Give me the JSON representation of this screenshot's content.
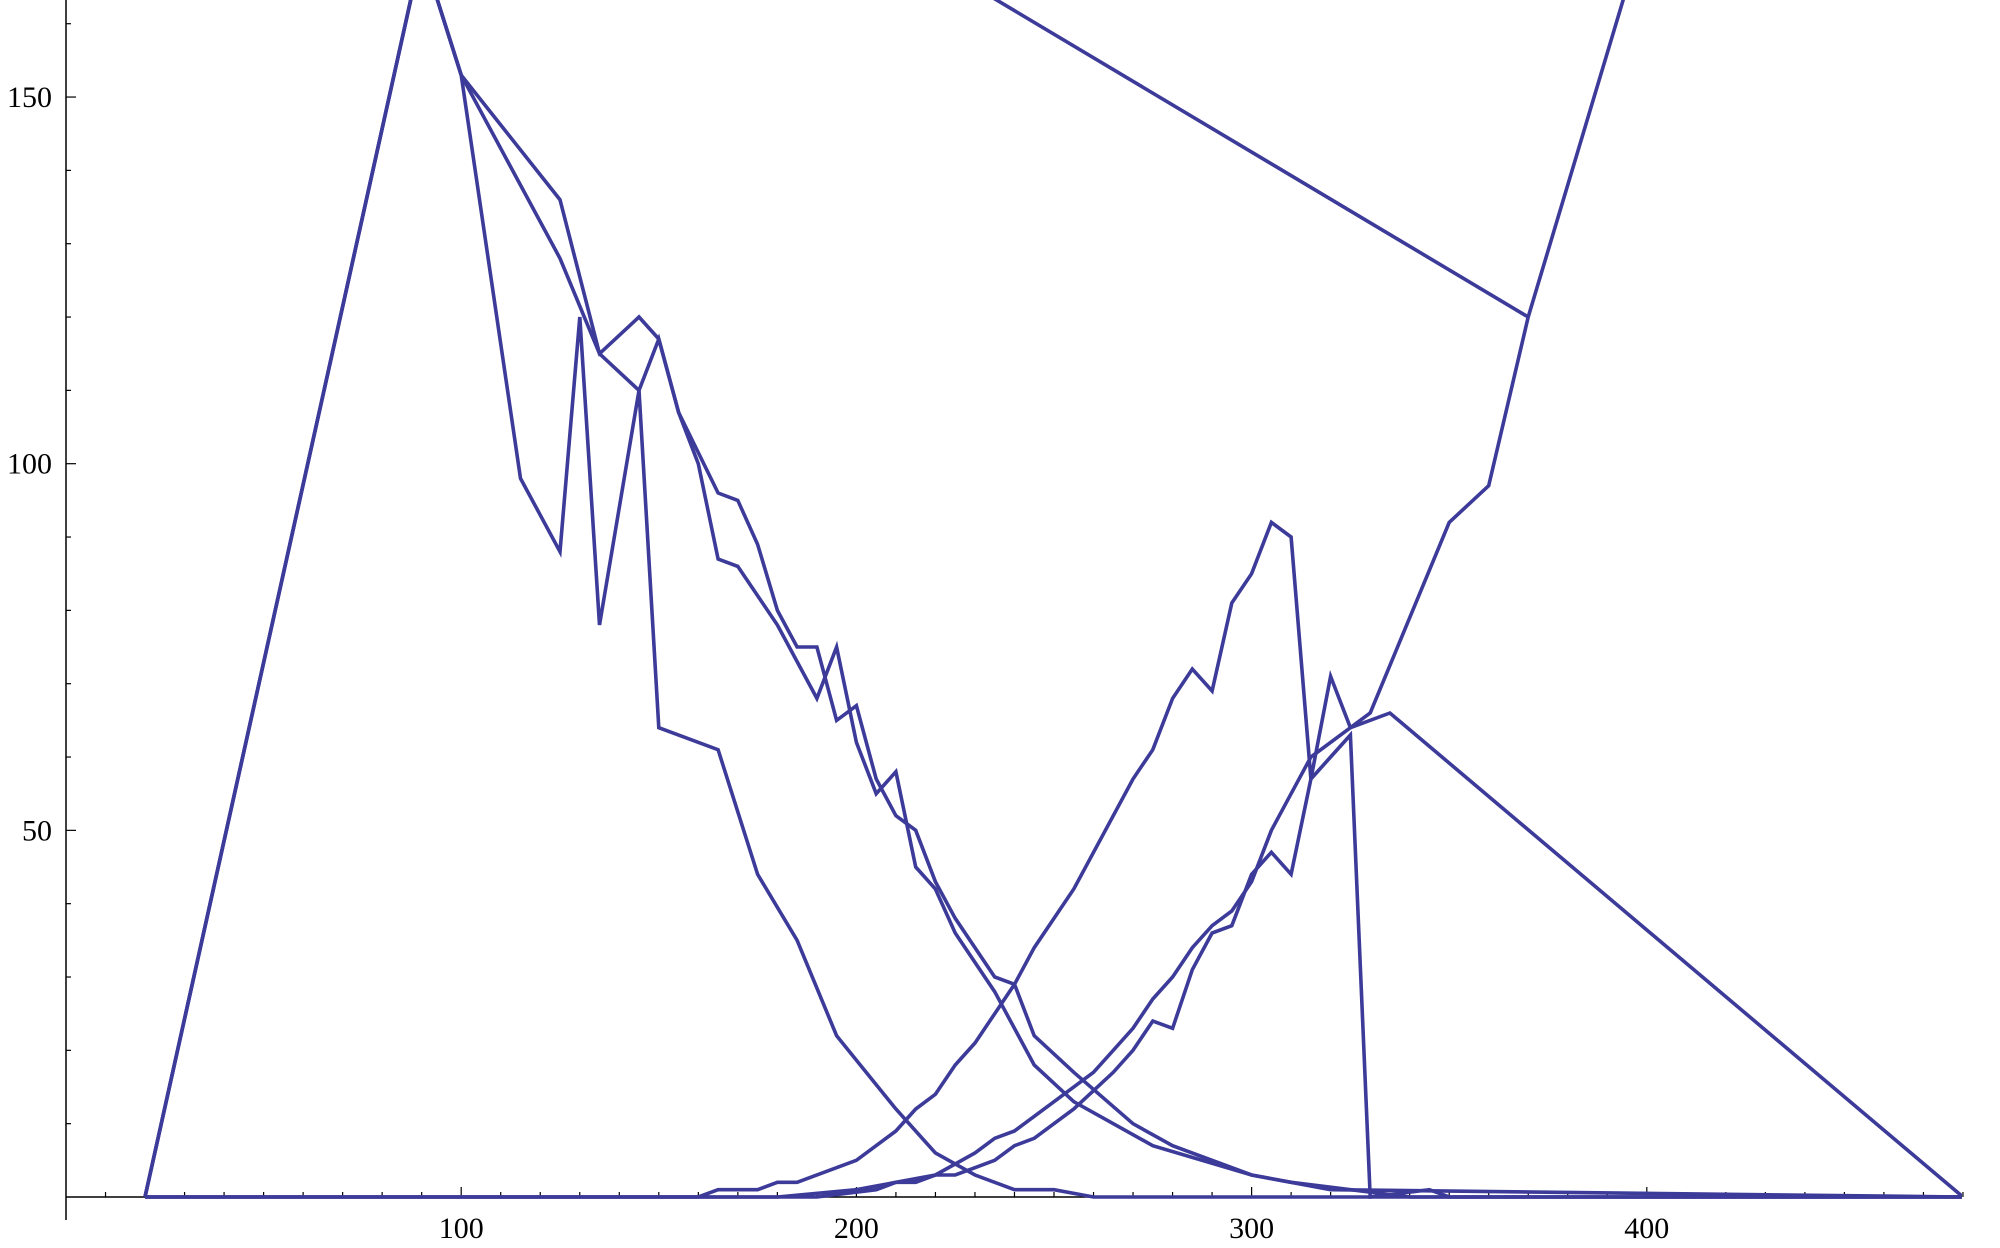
{
  "chart_data": {
    "type": "line",
    "title": "",
    "xlabel": "",
    "ylabel": "",
    "xlim": [
      0,
      480
    ],
    "ylim": [
      0,
      163
    ],
    "x_major_ticks": [
      100,
      200,
      300,
      400
    ],
    "y_major_ticks": [
      50,
      100,
      150
    ],
    "x_minor_step": 10,
    "y_minor_step": 10,
    "grid": false,
    "legend": "none",
    "line_color": "#3d3b99",
    "series": [
      {
        "x": [
          20,
          90,
          100,
          115,
          125,
          130,
          135,
          145,
          150,
          165,
          175,
          185,
          195,
          210,
          220,
          230,
          240,
          250,
          260,
          280,
          300,
          310,
          350,
          480
        ],
        "y": [
          0,
          170,
          153,
          98,
          88,
          120,
          78,
          110,
          64,
          61,
          44,
          35,
          22,
          12,
          6,
          3,
          1,
          1,
          0,
          0,
          0,
          0,
          0,
          0
        ]
      },
      {
        "x": [
          20,
          90,
          100,
          125,
          135,
          145,
          150,
          155,
          165,
          170,
          175,
          180,
          185,
          190,
          195,
          200,
          205,
          210,
          215,
          220,
          225,
          235,
          240,
          245,
          255,
          270,
          280,
          300,
          310,
          340,
          480
        ],
        "y": [
          0,
          170,
          153,
          128,
          115,
          120,
          117,
          107,
          96,
          95,
          89,
          80,
          75,
          75,
          65,
          67,
          57,
          52,
          50,
          43,
          38,
          30,
          29,
          22,
          17,
          10,
          7,
          3,
          2,
          0,
          0
        ]
      },
      {
        "x": [
          20,
          90,
          100,
          125,
          135,
          145,
          150,
          155,
          160,
          165,
          170,
          180,
          190,
          195,
          200,
          205,
          210,
          215,
          220,
          225,
          235,
          245,
          255,
          265,
          275,
          300,
          320,
          480
        ],
        "y": [
          0,
          170,
          153,
          136,
          115,
          110,
          117,
          107,
          100,
          87,
          86,
          78,
          68,
          75,
          62,
          55,
          58,
          45,
          42,
          36,
          28,
          18,
          13,
          10,
          7,
          3,
          1,
          0
        ]
      },
      {
        "x": [
          20,
          160,
          165,
          175,
          180,
          185,
          200,
          210,
          215,
          220,
          225,
          230,
          235,
          240,
          245,
          255,
          270,
          275,
          280,
          285,
          290,
          295,
          300,
          305,
          310,
          315,
          320,
          325,
          330,
          340,
          350,
          360,
          370,
          395,
          480
        ],
        "y": [
          0,
          0,
          1,
          1,
          2,
          2,
          5,
          9,
          12,
          14,
          18,
          21,
          25,
          29,
          34,
          42,
          57,
          61,
          68,
          72,
          69,
          81,
          85,
          92,
          90,
          57,
          71,
          64,
          66,
          79,
          92,
          97,
          120,
          165,
          165
        ]
      },
      {
        "x": [
          20,
          180,
          200,
          210,
          220,
          230,
          235,
          240,
          250,
          260,
          265,
          270,
          275,
          280,
          285,
          290,
          295,
          300,
          305,
          310,
          315,
          325,
          335,
          480
        ],
        "y": [
          0,
          0,
          1,
          2,
          3,
          6,
          8,
          9,
          13,
          17,
          20,
          23,
          27,
          30,
          34,
          37,
          39,
          43,
          50,
          55,
          60,
          64,
          66,
          0
        ]
      },
      {
        "x": [
          20,
          190,
          205,
          210,
          215,
          220,
          225,
          230,
          235,
          240,
          245,
          255,
          265,
          270,
          275,
          280,
          285,
          290,
          295,
          300,
          305,
          310,
          315,
          320,
          325,
          330,
          345,
          350,
          480
        ],
        "y": [
          0,
          0,
          1,
          2,
          2,
          3,
          3,
          4,
          5,
          7,
          8,
          12,
          17,
          20,
          24,
          23,
          31,
          36,
          37,
          44,
          47,
          44,
          57,
          60,
          63,
          0,
          1,
          0,
          0
        ]
      },
      {
        "x": [
          230,
          370
        ],
        "y": [
          165,
          120
        ]
      }
    ]
  }
}
